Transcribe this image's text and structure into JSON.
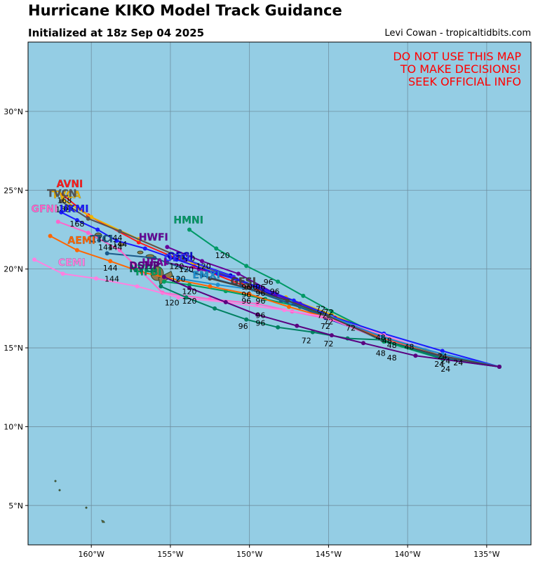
{
  "header": {
    "title": "Hurricane KIKO Model Track Guidance",
    "subtitle": "Initialized at 18z Sep 04 2025",
    "credit": "Levi Cowan - tropicaltidbits.com"
  },
  "warning": [
    "DO NOT USE THIS MAP",
    "TO MAKE DECISIONS!",
    "SEEK OFFICIAL INFO"
  ],
  "colors": {
    "ocean": "#94cde4",
    "grid": "#6f8fa0",
    "land": "#8f7a4f"
  },
  "map": {
    "lon_range": [
      -164,
      -132.2
    ],
    "lat_range": [
      2.5,
      34.4
    ],
    "lon_ticks": [
      {
        "lon": -160,
        "label": "160°W"
      },
      {
        "lon": -155,
        "label": "155°W"
      },
      {
        "lon": -150,
        "label": "150°W"
      },
      {
        "lon": -145,
        "label": "145°W"
      },
      {
        "lon": -140,
        "label": "140°W"
      },
      {
        "lon": -135,
        "label": "135°W"
      }
    ],
    "lat_ticks": [
      {
        "lat": 5,
        "label": "5°N"
      },
      {
        "lat": 10,
        "label": "10°N"
      },
      {
        "lat": 15,
        "label": "15°N"
      },
      {
        "lat": 20,
        "label": "20°N"
      },
      {
        "lat": 25,
        "label": "25°N"
      },
      {
        "lat": 30,
        "label": "30°N"
      }
    ]
  },
  "chart_data": {
    "type": "map",
    "title": "Hurricane KIKO Model Track Guidance",
    "subtitle": "Initialized at 18z Sep 04 2025",
    "tracks": [
      {
        "name": "AVNI",
        "color": "#ff1a1a",
        "points": [
          [
            -134.2,
            13.8
          ],
          [
            -138,
            14.5
          ],
          [
            -141.8,
            15.6
          ],
          [
            -145.2,
            17.0
          ],
          [
            -148,
            18.2
          ],
          [
            -150.5,
            19.0
          ],
          [
            -153.5,
            20.2
          ],
          [
            -157,
            21.7
          ],
          [
            -160.2,
            23.4
          ],
          [
            -161.8,
            24.7
          ]
        ],
        "label": [
          -162.2,
          25.2
        ]
      },
      {
        "name": "TVCA",
        "color": "#f0b400",
        "points": [
          [
            -134.2,
            13.8
          ],
          [
            -138,
            14.6
          ],
          [
            -141.5,
            15.8
          ],
          [
            -144.8,
            17.1
          ],
          [
            -147.7,
            18.2
          ],
          [
            -150.6,
            19.3
          ],
          [
            -153.6,
            20.4
          ],
          [
            -157,
            21.9
          ],
          [
            -160,
            23.3
          ],
          [
            -161.8,
            24.4
          ]
        ],
        "label": [
          -162.5,
          24.5
        ]
      },
      {
        "name": "TVCN",
        "color": "#555555",
        "points": [
          [
            -134.2,
            13.8
          ],
          [
            -138,
            14.5
          ],
          [
            -141.6,
            15.6
          ],
          [
            -145.1,
            17.0
          ],
          [
            -148,
            18.1
          ],
          [
            -151,
            19.4
          ],
          [
            -154.5,
            20.8
          ],
          [
            -158.2,
            22.4
          ],
          [
            -160.2,
            23.2
          ],
          [
            -161.9,
            24.3
          ]
        ],
        "label": [
          -162.8,
          24.6
        ]
      },
      {
        "name": "OFCI",
        "color": "#0000cc",
        "points": [
          [
            -134.2,
            13.8
          ],
          [
            -138,
            14.5
          ],
          [
            -141.6,
            15.6
          ],
          [
            -145.2,
            16.9
          ],
          [
            -148.2,
            18.2
          ],
          [
            -151.2,
            19.6
          ],
          [
            -154,
            20.6
          ]
        ],
        "label": [
          -155.2,
          20.6
        ]
      },
      {
        "name": "OFCL",
        "color": "#3333ff",
        "points": [
          [
            -134.2,
            13.8
          ],
          [
            -138,
            14.5
          ],
          [
            -141.6,
            15.6
          ],
          [
            -145,
            16.9
          ],
          [
            -148,
            18.2
          ],
          [
            -151,
            19.5
          ],
          [
            -154,
            20.6
          ]
        ],
        "label": [
          -155.4,
          20.5
        ]
      },
      {
        "name": "HWFI",
        "color": "#660099",
        "points": [
          [
            -134.2,
            13.8
          ],
          [
            -137.8,
            14.6
          ],
          [
            -141.8,
            15.7
          ],
          [
            -145.3,
            17.0
          ],
          [
            -148.3,
            18.4
          ],
          [
            -150.7,
            19.7
          ],
          [
            -153,
            20.5
          ],
          [
            -155.2,
            21.4
          ]
        ],
        "label": [
          -157,
          21.8
        ]
      },
      {
        "name": "HMNI",
        "color": "#009966",
        "points": [
          [
            -134.2,
            13.8
          ],
          [
            -137.9,
            14.5
          ],
          [
            -141.8,
            15.8
          ],
          [
            -144.8,
            17.3
          ],
          [
            -146.6,
            18.3
          ],
          [
            -148.2,
            19.2
          ],
          [
            -150.2,
            20.2
          ],
          [
            -152.1,
            21.3
          ],
          [
            -153.8,
            22.5
          ]
        ],
        "label": [
          -154.8,
          22.9
        ]
      },
      {
        "name": "HFAI",
        "color": "#7a00a3",
        "points": [
          [
            -134.2,
            13.8
          ],
          [
            -137.8,
            14.4
          ],
          [
            -141.5,
            15.6
          ],
          [
            -144.6,
            16.9
          ],
          [
            -146.8,
            17.8
          ],
          [
            -148.5,
            18.5
          ],
          [
            -151,
            19.4
          ],
          [
            -153.2,
            20.0
          ],
          [
            -155.2,
            20.4
          ]
        ],
        "label": [
          -156.8,
          20.2
        ]
      },
      {
        "name": "HFBI",
        "color": "#00a060",
        "points": [
          [
            -134.2,
            13.8
          ],
          [
            -137.8,
            14.3
          ],
          [
            -141.5,
            15.4
          ],
          [
            -144.5,
            16.8
          ],
          [
            -146.8,
            17.6
          ],
          [
            -149,
            18.1
          ],
          [
            -151.5,
            18.6
          ],
          [
            -153.8,
            19.0
          ],
          [
            -155.4,
            19.2
          ]
        ],
        "label": [
          -157.2,
          19.6
        ]
      },
      {
        "name": "CTCI",
        "color": "#1a5a8a",
        "points": [
          [
            -134.2,
            13.8
          ],
          [
            -137.8,
            14.4
          ],
          [
            -141.6,
            15.5
          ],
          [
            -145,
            16.9
          ],
          [
            -148,
            18.0
          ],
          [
            -150.5,
            18.9
          ],
          [
            -153,
            19.6
          ],
          [
            -156,
            20.7
          ],
          [
            -159,
            21.0
          ]
        ],
        "label": [
          -160.2,
          21.7
        ]
      },
      {
        "name": "AEMI",
        "color": "#ff6600",
        "points": [
          [
            -134.2,
            13.8
          ],
          [
            -137.9,
            14.5
          ],
          [
            -141.6,
            15.6
          ],
          [
            -145,
            16.9
          ],
          [
            -147.5,
            17.6
          ],
          [
            -150,
            18.4
          ],
          [
            -152.5,
            18.9
          ],
          [
            -154.5,
            19.3
          ],
          [
            -156.8,
            19.8
          ],
          [
            -158.8,
            20.5
          ],
          [
            -160.9,
            21.2
          ],
          [
            -162.6,
            22.1
          ]
        ],
        "label": [
          -161.5,
          21.6
        ]
      },
      {
        "name": "UKMI",
        "color": "#1a1aff",
        "points": [
          [
            -134.2,
            13.8
          ],
          [
            -137.8,
            14.8
          ],
          [
            -141.5,
            15.9
          ],
          [
            -144.8,
            17.0
          ],
          [
            -147.2,
            18.0
          ],
          [
            -149.5,
            18.9
          ],
          [
            -152,
            19.7
          ],
          [
            -154.6,
            20.6
          ],
          [
            -156.6,
            21.3
          ],
          [
            -158.4,
            21.8
          ],
          [
            -159.6,
            22.5
          ],
          [
            -160.9,
            23.1
          ],
          [
            -161.9,
            23.6
          ]
        ],
        "label": [
          -162,
          23.6
        ]
      },
      {
        "name": "GFNI",
        "color": "#ff66cc",
        "points": [
          [
            -134.2,
            13.8
          ],
          [
            -137.9,
            14.5
          ],
          [
            -141.8,
            15.6
          ],
          [
            -144.8,
            16.8
          ],
          [
            -147.3,
            17.3
          ],
          [
            -149.5,
            17.8
          ],
          [
            -152.5,
            18.1
          ],
          [
            -155.5,
            18.5
          ],
          [
            -158.2,
            21.2
          ],
          [
            -160.2,
            22.3
          ],
          [
            -162.1,
            23.0
          ]
        ],
        "label": [
          -163.8,
          23.6
        ]
      },
      {
        "name": "CEMI",
        "color": "#ff80e0",
        "points": [
          [
            -134.2,
            13.8
          ],
          [
            -137.9,
            14.6
          ],
          [
            -141.5,
            15.8
          ],
          [
            -144.8,
            16.9
          ],
          [
            -147.8,
            17.4
          ],
          [
            -151.5,
            17.9
          ],
          [
            -154.5,
            18.2
          ],
          [
            -157.1,
            18.9
          ],
          [
            -159.7,
            19.4
          ],
          [
            -161.8,
            19.7
          ],
          [
            -163.6,
            20.6
          ]
        ],
        "label": [
          -162.1,
          20.2
        ]
      },
      {
        "name": "EMXI",
        "color": "#1f8fcf",
        "points": [
          [
            -134.2,
            13.8
          ],
          [
            -137.8,
            14.6
          ],
          [
            -141.6,
            15.7
          ],
          [
            -144.9,
            17.0
          ],
          [
            -147.4,
            17.9
          ],
          [
            -149.8,
            18.7
          ],
          [
            -152,
            19.0
          ],
          [
            -154.5,
            19.4
          ]
        ],
        "label": [
          -153.6,
          19.4
        ]
      },
      {
        "name": "GFSI",
        "color": "#444444",
        "points": [
          [
            -134.2,
            13.8
          ],
          [
            -137.9,
            14.5
          ],
          [
            -141.6,
            15.5
          ],
          [
            -145,
            17.0
          ],
          [
            -147.6,
            18.0
          ],
          [
            -150.2,
            18.8
          ],
          [
            -152.5,
            19.4
          ]
        ],
        "label": [
          -151.2,
          19.0
        ]
      },
      {
        "name": "NVGI",
        "color": "#008060",
        "points": [
          [
            -134.2,
            13.8
          ],
          [
            -137.8,
            14.3
          ],
          [
            -141.5,
            15.5
          ],
          [
            -143.8,
            15.6
          ],
          [
            -146,
            16.0
          ],
          [
            -148.2,
            16.3
          ],
          [
            -150.2,
            16.8
          ],
          [
            -152.2,
            17.5
          ],
          [
            -154,
            18.2
          ],
          [
            -155.6,
            18.9
          ]
        ],
        "label": [
          -157.6,
          19.8
        ]
      },
      {
        "name": "DSHP",
        "color": "#5a0080",
        "points": [
          [
            -134.2,
            13.8
          ],
          [
            -139.5,
            14.5
          ],
          [
            -142.8,
            15.3
          ],
          [
            -144.8,
            15.8
          ],
          [
            -147,
            16.4
          ],
          [
            -149.5,
            17.1
          ],
          [
            -151.5,
            17.9
          ],
          [
            -153.8,
            18.8
          ],
          [
            -155.4,
            19.5
          ]
        ],
        "label": [
          -157.6,
          20.0
        ]
      }
    ],
    "hour_labels": [
      {
        "text": "168",
        "lon": -161.7,
        "lat": 24.2
      },
      {
        "text": "168",
        "lon": -161.6,
        "lat": 23.7
      },
      {
        "text": "168",
        "lon": -161.8,
        "lat": 23.6
      },
      {
        "text": "168",
        "lon": -160.9,
        "lat": 22.7
      },
      {
        "text": "144",
        "lon": -159.5,
        "lat": 21.7
      },
      {
        "text": "144",
        "lon": -158.5,
        "lat": 21.2
      },
      {
        "text": "144",
        "lon": -158.5,
        "lat": 21.8
      },
      {
        "text": "144",
        "lon": -158.2,
        "lat": 21.4
      },
      {
        "text": "144",
        "lon": -159.1,
        "lat": 21.2
      },
      {
        "text": "144",
        "lon": -158.8,
        "lat": 19.9
      },
      {
        "text": "144",
        "lon": -158.7,
        "lat": 19.2
      },
      {
        "text": "120",
        "lon": -151.7,
        "lat": 20.7
      },
      {
        "text": "120",
        "lon": -153.9,
        "lat": 20.5
      },
      {
        "text": "120",
        "lon": -154.6,
        "lat": 20.0
      },
      {
        "text": "120",
        "lon": -154.0,
        "lat": 19.8
      },
      {
        "text": "120",
        "lon": -152.9,
        "lat": 20.0
      },
      {
        "text": "120",
        "lon": -154.5,
        "lat": 19.2
      },
      {
        "text": "120",
        "lon": -153.8,
        "lat": 18.4
      },
      {
        "text": "120",
        "lon": -153.8,
        "lat": 17.8
      },
      {
        "text": "120",
        "lon": -154.9,
        "lat": 17.7
      },
      {
        "text": "96",
        "lon": -148.8,
        "lat": 19.0
      },
      {
        "text": "96",
        "lon": -150.2,
        "lat": 18.7
      },
      {
        "text": "96",
        "lon": -149.8,
        "lat": 18.7
      },
      {
        "text": "96",
        "lon": -149.3,
        "lat": 18.7
      },
      {
        "text": "96",
        "lon": -148.4,
        "lat": 18.4
      },
      {
        "text": "96",
        "lon": -149.3,
        "lat": 18.3
      },
      {
        "text": "96",
        "lon": -150.2,
        "lat": 18.2
      },
      {
        "text": "96",
        "lon": -150.2,
        "lat": 17.8
      },
      {
        "text": "96",
        "lon": -149.3,
        "lat": 17.8
      },
      {
        "text": "96",
        "lon": -149.3,
        "lat": 16.9
      },
      {
        "text": "96",
        "lon": -149.3,
        "lat": 16.4
      },
      {
        "text": "96",
        "lon": -150.4,
        "lat": 16.2
      },
      {
        "text": "72",
        "lon": -145.5,
        "lat": 17.3
      },
      {
        "text": "72",
        "lon": -145.0,
        "lat": 17.1
      },
      {
        "text": "72",
        "lon": -145.4,
        "lat": 16.9
      },
      {
        "text": "72",
        "lon": -145.0,
        "lat": 16.5
      },
      {
        "text": "72",
        "lon": -145.2,
        "lat": 16.2
      },
      {
        "text": "72",
        "lon": -143.6,
        "lat": 16.1
      },
      {
        "text": "72",
        "lon": -146.4,
        "lat": 15.3
      },
      {
        "text": "72",
        "lon": -145.0,
        "lat": 15.1
      },
      {
        "text": "48",
        "lon": -141.7,
        "lat": 15.5
      },
      {
        "text": "48",
        "lon": -141.3,
        "lat": 15.3
      },
      {
        "text": "48",
        "lon": -141.0,
        "lat": 15.0
      },
      {
        "text": "48",
        "lon": -139.9,
        "lat": 14.9
      },
      {
        "text": "48",
        "lon": -141.7,
        "lat": 14.5
      },
      {
        "text": "48",
        "lon": -141.0,
        "lat": 14.2
      },
      {
        "text": "24",
        "lon": -137.8,
        "lat": 14.3
      },
      {
        "text": "24",
        "lon": -137.6,
        "lat": 14.0
      },
      {
        "text": "24",
        "lon": -136.8,
        "lat": 13.9
      },
      {
        "text": "24",
        "lon": -138.0,
        "lat": 13.8
      },
      {
        "text": "24",
        "lon": -137.6,
        "lat": 13.5
      }
    ]
  }
}
